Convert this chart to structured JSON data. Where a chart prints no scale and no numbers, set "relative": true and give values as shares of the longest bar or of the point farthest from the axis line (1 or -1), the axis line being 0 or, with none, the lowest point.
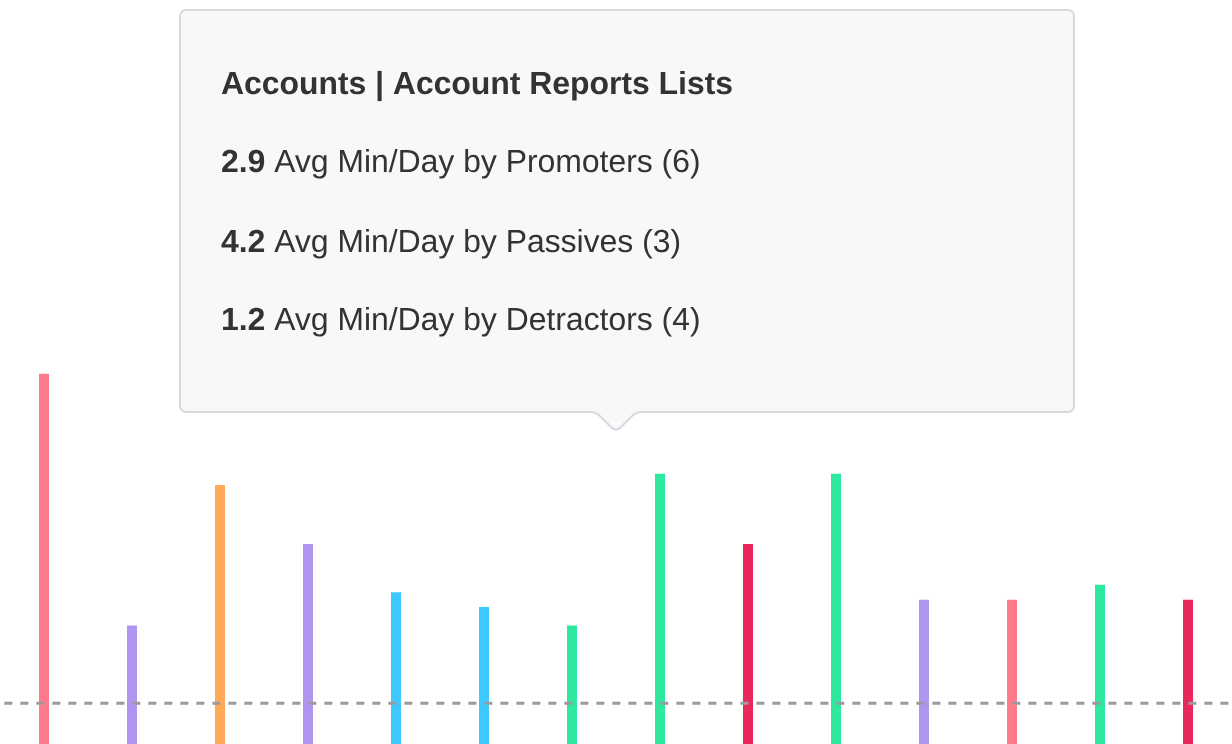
{
  "chart_data": {
    "type": "bar",
    "relative": true,
    "categories": [
      null,
      null,
      null,
      null,
      null,
      null,
      null,
      null,
      null,
      null,
      null,
      null,
      null,
      null
    ],
    "values": [
      1,
      0.32,
      0.7,
      0.54,
      0.41,
      0.37,
      0.32,
      0.73,
      0.54,
      0.73,
      0.39,
      0.39,
      0.43,
      0.39
    ],
    "colors": [
      "#ff7b8c",
      "#b095f0",
      "#ffaa55",
      "#b095f0",
      "#3dc9ff",
      "#3dc9ff",
      "#2ee89e",
      "#2ee89e",
      "#e8275a",
      "#2ee89e",
      "#b095f0",
      "#ff7b8c",
      "#2ee89e",
      "#e8275a"
    ],
    "ref_lines": [
      {
        "axis": "y",
        "value": 0.11,
        "color": "#9a9aa0",
        "line_style": "dashed"
      }
    ],
    "annotations": [
      "Accounts | Account Reports Lists",
      "**2.9** Avg Min/Day by Promoters (6)",
      "**4.2** Avg Min/Day by Passives (3)",
      "**1.2** Avg Min/Day by Detractors (4)"
    ]
  }
}
